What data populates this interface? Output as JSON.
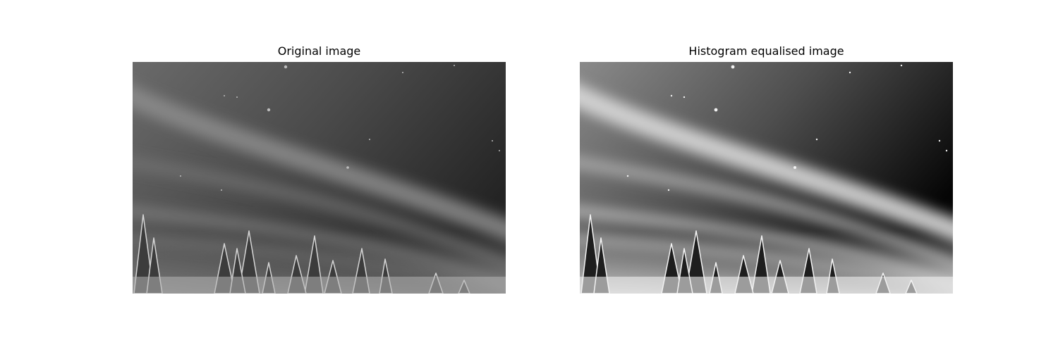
{
  "figure": {
    "panels": [
      {
        "title": "Original image",
        "image": "aurora-night-sky-grayscale-original"
      },
      {
        "title": "Histogram equalised image",
        "image": "aurora-night-sky-grayscale-equalised"
      }
    ]
  }
}
